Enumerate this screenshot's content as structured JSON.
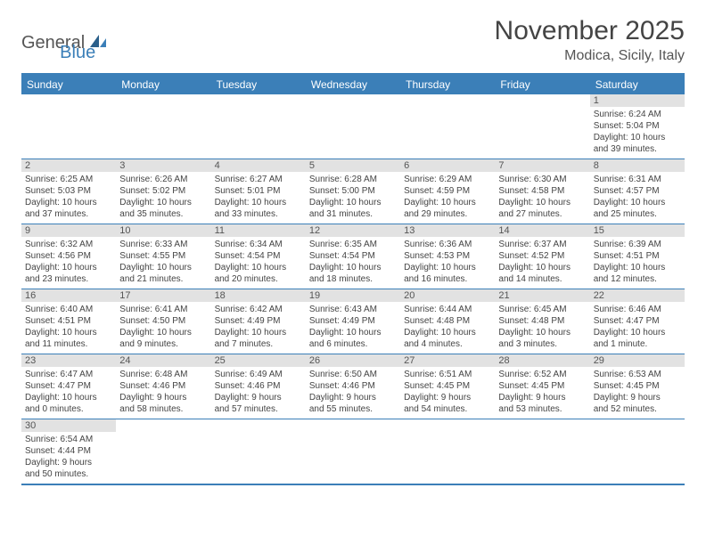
{
  "logo": {
    "text1": "General",
    "text2": "Blue"
  },
  "title": "November 2025",
  "location": "Modica, Sicily, Italy",
  "colors": {
    "accent": "#3b7fb8",
    "daynum_bg": "#e2e2e2",
    "text": "#444444",
    "background": "#ffffff"
  },
  "day_headers": [
    "Sunday",
    "Monday",
    "Tuesday",
    "Wednesday",
    "Thursday",
    "Friday",
    "Saturday"
  ],
  "weeks": [
    [
      null,
      null,
      null,
      null,
      null,
      null,
      {
        "day": "1",
        "sunrise": "Sunrise: 6:24 AM",
        "sunset": "Sunset: 5:04 PM",
        "daylight1": "Daylight: 10 hours",
        "daylight2": "and 39 minutes."
      }
    ],
    [
      {
        "day": "2",
        "sunrise": "Sunrise: 6:25 AM",
        "sunset": "Sunset: 5:03 PM",
        "daylight1": "Daylight: 10 hours",
        "daylight2": "and 37 minutes."
      },
      {
        "day": "3",
        "sunrise": "Sunrise: 6:26 AM",
        "sunset": "Sunset: 5:02 PM",
        "daylight1": "Daylight: 10 hours",
        "daylight2": "and 35 minutes."
      },
      {
        "day": "4",
        "sunrise": "Sunrise: 6:27 AM",
        "sunset": "Sunset: 5:01 PM",
        "daylight1": "Daylight: 10 hours",
        "daylight2": "and 33 minutes."
      },
      {
        "day": "5",
        "sunrise": "Sunrise: 6:28 AM",
        "sunset": "Sunset: 5:00 PM",
        "daylight1": "Daylight: 10 hours",
        "daylight2": "and 31 minutes."
      },
      {
        "day": "6",
        "sunrise": "Sunrise: 6:29 AM",
        "sunset": "Sunset: 4:59 PM",
        "daylight1": "Daylight: 10 hours",
        "daylight2": "and 29 minutes."
      },
      {
        "day": "7",
        "sunrise": "Sunrise: 6:30 AM",
        "sunset": "Sunset: 4:58 PM",
        "daylight1": "Daylight: 10 hours",
        "daylight2": "and 27 minutes."
      },
      {
        "day": "8",
        "sunrise": "Sunrise: 6:31 AM",
        "sunset": "Sunset: 4:57 PM",
        "daylight1": "Daylight: 10 hours",
        "daylight2": "and 25 minutes."
      }
    ],
    [
      {
        "day": "9",
        "sunrise": "Sunrise: 6:32 AM",
        "sunset": "Sunset: 4:56 PM",
        "daylight1": "Daylight: 10 hours",
        "daylight2": "and 23 minutes."
      },
      {
        "day": "10",
        "sunrise": "Sunrise: 6:33 AM",
        "sunset": "Sunset: 4:55 PM",
        "daylight1": "Daylight: 10 hours",
        "daylight2": "and 21 minutes."
      },
      {
        "day": "11",
        "sunrise": "Sunrise: 6:34 AM",
        "sunset": "Sunset: 4:54 PM",
        "daylight1": "Daylight: 10 hours",
        "daylight2": "and 20 minutes."
      },
      {
        "day": "12",
        "sunrise": "Sunrise: 6:35 AM",
        "sunset": "Sunset: 4:54 PM",
        "daylight1": "Daylight: 10 hours",
        "daylight2": "and 18 minutes."
      },
      {
        "day": "13",
        "sunrise": "Sunrise: 6:36 AM",
        "sunset": "Sunset: 4:53 PM",
        "daylight1": "Daylight: 10 hours",
        "daylight2": "and 16 minutes."
      },
      {
        "day": "14",
        "sunrise": "Sunrise: 6:37 AM",
        "sunset": "Sunset: 4:52 PM",
        "daylight1": "Daylight: 10 hours",
        "daylight2": "and 14 minutes."
      },
      {
        "day": "15",
        "sunrise": "Sunrise: 6:39 AM",
        "sunset": "Sunset: 4:51 PM",
        "daylight1": "Daylight: 10 hours",
        "daylight2": "and 12 minutes."
      }
    ],
    [
      {
        "day": "16",
        "sunrise": "Sunrise: 6:40 AM",
        "sunset": "Sunset: 4:51 PM",
        "daylight1": "Daylight: 10 hours",
        "daylight2": "and 11 minutes."
      },
      {
        "day": "17",
        "sunrise": "Sunrise: 6:41 AM",
        "sunset": "Sunset: 4:50 PM",
        "daylight1": "Daylight: 10 hours",
        "daylight2": "and 9 minutes."
      },
      {
        "day": "18",
        "sunrise": "Sunrise: 6:42 AM",
        "sunset": "Sunset: 4:49 PM",
        "daylight1": "Daylight: 10 hours",
        "daylight2": "and 7 minutes."
      },
      {
        "day": "19",
        "sunrise": "Sunrise: 6:43 AM",
        "sunset": "Sunset: 4:49 PM",
        "daylight1": "Daylight: 10 hours",
        "daylight2": "and 6 minutes."
      },
      {
        "day": "20",
        "sunrise": "Sunrise: 6:44 AM",
        "sunset": "Sunset: 4:48 PM",
        "daylight1": "Daylight: 10 hours",
        "daylight2": "and 4 minutes."
      },
      {
        "day": "21",
        "sunrise": "Sunrise: 6:45 AM",
        "sunset": "Sunset: 4:48 PM",
        "daylight1": "Daylight: 10 hours",
        "daylight2": "and 3 minutes."
      },
      {
        "day": "22",
        "sunrise": "Sunrise: 6:46 AM",
        "sunset": "Sunset: 4:47 PM",
        "daylight1": "Daylight: 10 hours",
        "daylight2": "and 1 minute."
      }
    ],
    [
      {
        "day": "23",
        "sunrise": "Sunrise: 6:47 AM",
        "sunset": "Sunset: 4:47 PM",
        "daylight1": "Daylight: 10 hours",
        "daylight2": "and 0 minutes."
      },
      {
        "day": "24",
        "sunrise": "Sunrise: 6:48 AM",
        "sunset": "Sunset: 4:46 PM",
        "daylight1": "Daylight: 9 hours",
        "daylight2": "and 58 minutes."
      },
      {
        "day": "25",
        "sunrise": "Sunrise: 6:49 AM",
        "sunset": "Sunset: 4:46 PM",
        "daylight1": "Daylight: 9 hours",
        "daylight2": "and 57 minutes."
      },
      {
        "day": "26",
        "sunrise": "Sunrise: 6:50 AM",
        "sunset": "Sunset: 4:46 PM",
        "daylight1": "Daylight: 9 hours",
        "daylight2": "and 55 minutes."
      },
      {
        "day": "27",
        "sunrise": "Sunrise: 6:51 AM",
        "sunset": "Sunset: 4:45 PM",
        "daylight1": "Daylight: 9 hours",
        "daylight2": "and 54 minutes."
      },
      {
        "day": "28",
        "sunrise": "Sunrise: 6:52 AM",
        "sunset": "Sunset: 4:45 PM",
        "daylight1": "Daylight: 9 hours",
        "daylight2": "and 53 minutes."
      },
      {
        "day": "29",
        "sunrise": "Sunrise: 6:53 AM",
        "sunset": "Sunset: 4:45 PM",
        "daylight1": "Daylight: 9 hours",
        "daylight2": "and 52 minutes."
      }
    ],
    [
      {
        "day": "30",
        "sunrise": "Sunrise: 6:54 AM",
        "sunset": "Sunset: 4:44 PM",
        "daylight1": "Daylight: 9 hours",
        "daylight2": "and 50 minutes."
      },
      null,
      null,
      null,
      null,
      null,
      null
    ]
  ]
}
